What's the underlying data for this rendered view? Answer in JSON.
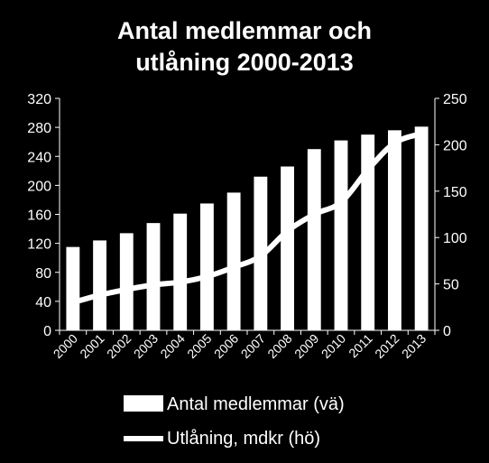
{
  "chart_data": {
    "type": "bar",
    "title_lines": [
      "Antal medlemmar och",
      "utlåning 2000-2013"
    ],
    "categories": [
      "2000",
      "2001",
      "2002",
      "2003",
      "2004",
      "2005",
      "2006",
      "2007",
      "2008",
      "2009",
      "2010",
      "2011",
      "2012",
      "2013"
    ],
    "series": [
      {
        "name": "Antal medlemmar (vä)",
        "type": "bar",
        "axis": "left",
        "values": [
          115,
          124,
          134,
          148,
          161,
          175,
          190,
          212,
          226,
          250,
          262,
          270,
          276,
          281
        ]
      },
      {
        "name": "Utlåning, mdkr (hö)",
        "type": "line",
        "axis": "right",
        "values": [
          30,
          38,
          44,
          49,
          52,
          58,
          68,
          80,
          107,
          125,
          138,
          173,
          202,
          212
        ]
      }
    ],
    "y_left": {
      "min": 0,
      "max": 320,
      "ticks": [
        0,
        40,
        80,
        120,
        160,
        200,
        240,
        280,
        320
      ]
    },
    "y_right": {
      "min": 0,
      "max": 250,
      "ticks": [
        0,
        50,
        100,
        150,
        200,
        250
      ]
    },
    "grid": false,
    "legend_position": "bottom",
    "colors": {
      "background": "#000000",
      "foreground": "#ffffff"
    }
  }
}
